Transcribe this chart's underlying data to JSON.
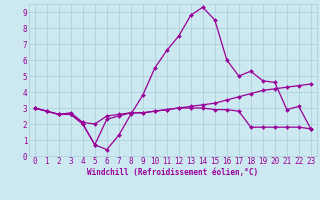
{
  "x": [
    0,
    1,
    2,
    3,
    4,
    5,
    6,
    7,
    8,
    9,
    10,
    11,
    12,
    13,
    14,
    15,
    16,
    17,
    18,
    19,
    20,
    21,
    22,
    23
  ],
  "line1": [
    3.0,
    2.8,
    2.6,
    2.6,
    2.0,
    0.7,
    0.4,
    1.3,
    2.6,
    3.8,
    5.5,
    6.6,
    7.5,
    8.8,
    9.3,
    8.5,
    6.0,
    5.0,
    5.3,
    4.7,
    4.6,
    2.9,
    3.1,
    1.7
  ],
  "line2": [
    3.0,
    2.8,
    2.6,
    2.7,
    2.1,
    2.0,
    2.5,
    2.6,
    2.7,
    2.7,
    2.8,
    2.9,
    3.0,
    3.1,
    3.2,
    3.3,
    3.5,
    3.7,
    3.9,
    4.1,
    4.2,
    4.3,
    4.4,
    4.5
  ],
  "line3": [
    3.0,
    2.8,
    2.6,
    2.6,
    2.0,
    0.7,
    2.3,
    2.5,
    2.7,
    2.7,
    2.8,
    2.9,
    3.0,
    3.0,
    3.0,
    2.9,
    2.9,
    2.8,
    1.8,
    1.8,
    1.8,
    1.8,
    1.8,
    1.7
  ],
  "line_color": "#990099",
  "bg_color": "#cce8f0",
  "grid_color": "#aaccd8",
  "xlabel": "Windchill (Refroidissement éolien,°C)",
  "xlim": [
    -0.5,
    23.5
  ],
  "ylim": [
    0,
    9.5
  ],
  "xticks": [
    0,
    1,
    2,
    3,
    4,
    5,
    6,
    7,
    8,
    9,
    10,
    11,
    12,
    13,
    14,
    15,
    16,
    17,
    18,
    19,
    20,
    21,
    22,
    23
  ],
  "yticks": [
    0,
    1,
    2,
    3,
    4,
    5,
    6,
    7,
    8,
    9
  ],
  "tick_fontsize": 5.5,
  "xlabel_fontsize": 5.5,
  "marker_size": 2.0,
  "line_width": 0.9
}
